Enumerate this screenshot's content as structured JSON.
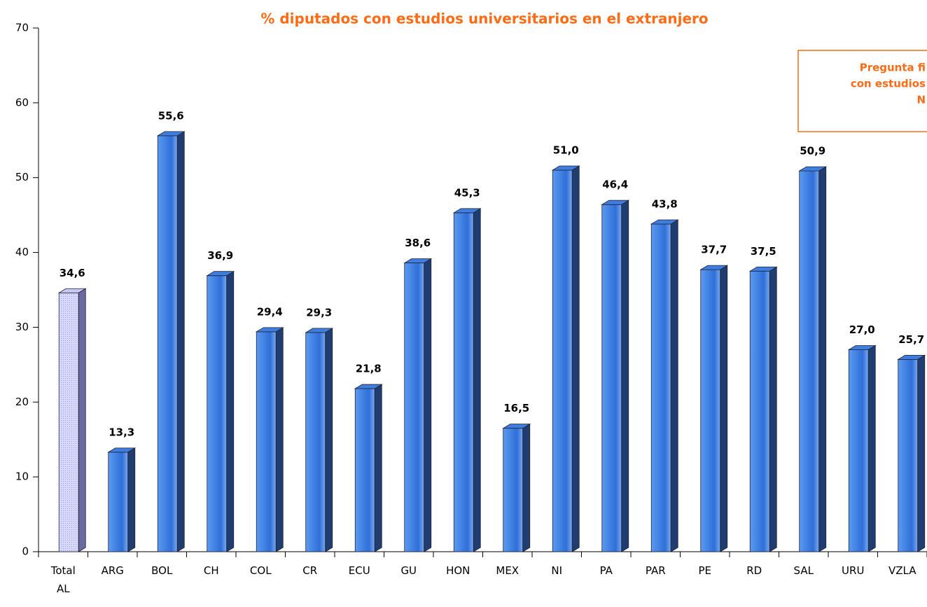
{
  "chart_data": {
    "type": "bar",
    "title": "% diputados con estudios universitarios en el extranjero",
    "annotation": [
      "Pregunta fi",
      "con estudios",
      "N"
    ],
    "categories": [
      "Total AL",
      "ARG",
      "BOL",
      "CH",
      "COL",
      "CR",
      "ECU",
      "GU",
      "HON",
      "MEX",
      "NI",
      "PA",
      "PAR",
      "PE",
      "RD",
      "SAL",
      "URU",
      "VZLA"
    ],
    "values": [
      34.6,
      13.3,
      55.6,
      36.9,
      29.4,
      29.3,
      21.8,
      38.6,
      45.3,
      16.5,
      51.0,
      46.4,
      43.8,
      37.7,
      37.5,
      50.9,
      27.0,
      25.7
    ],
    "value_labels": [
      "34,6",
      "13,3",
      "55,6",
      "36,9",
      "29,4",
      "29,3",
      "21,8",
      "38,6",
      "45,3",
      "16,5",
      "51,0",
      "46,4",
      "43,8",
      "37,7",
      "37,5",
      "50,9",
      "27,0",
      "25,7"
    ],
    "colors": [
      "#c8c8f4",
      "#3d7ee0",
      "#3d7ee0",
      "#3d7ee0",
      "#3d7ee0",
      "#3d7ee0",
      "#3d7ee0",
      "#3d7ee0",
      "#3d7ee0",
      "#3d7ee0",
      "#3d7ee0",
      "#3d7ee0",
      "#3d7ee0",
      "#3d7ee0",
      "#3d7ee0",
      "#3d7ee0",
      "#3d7ee0",
      "#3d7ee0"
    ],
    "ylim": [
      0,
      70
    ],
    "yticks": [
      0,
      10,
      20,
      30,
      40,
      50,
      60,
      70
    ]
  }
}
